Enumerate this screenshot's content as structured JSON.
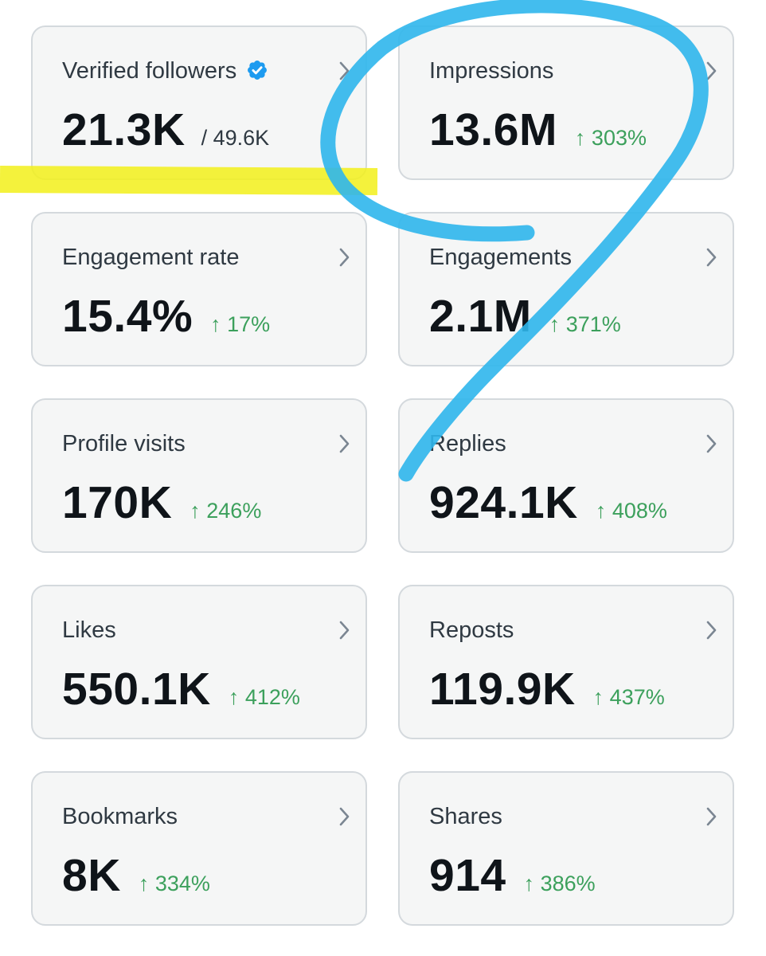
{
  "colors": {
    "card_bg": "#f5f6f6",
    "card_border": "#d4d9dd",
    "label_text": "#2f3942",
    "value_text": "#0f1419",
    "positive_change": "#3ca05c",
    "verified_badge": "#1d9bf0",
    "highlighter_yellow": "#f2f01a",
    "marker_blue": "#2fb6ec"
  },
  "cards": [
    {
      "label": "Verified followers",
      "value": "21.3K",
      "suffix": "/ 49.6K",
      "icon": "verified-badge-icon"
    },
    {
      "label": "Impressions",
      "value": "13.6M",
      "change": "↑ 303%"
    },
    {
      "label": "Engagement rate",
      "value": "15.4%",
      "change": "↑ 17%"
    },
    {
      "label": "Engagements",
      "value": "2.1M",
      "change": "↑ 371%"
    },
    {
      "label": "Profile visits",
      "value": "170K",
      "change": "↑ 246%"
    },
    {
      "label": "Replies",
      "value": "924.1K",
      "change": "↑ 408%"
    },
    {
      "label": "Likes",
      "value": "550.1K",
      "change": "↑ 412%"
    },
    {
      "label": "Reposts",
      "value": "119.9K",
      "change": "↑ 437%"
    },
    {
      "label": "Bookmarks",
      "value": "8K",
      "change": "↑ 334%"
    },
    {
      "label": "Shares",
      "value": "914",
      "change": "↑ 386%"
    }
  ],
  "annotations": {
    "highlight": "yellow-highlighter-stroke",
    "scribble": "blue-marker-number-9"
  }
}
